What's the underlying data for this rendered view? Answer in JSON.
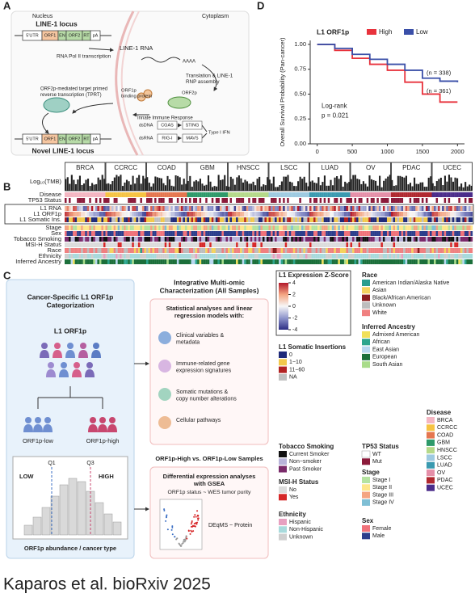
{
  "panel_labels": [
    "A",
    "B",
    "C",
    "D"
  ],
  "panel_a": {
    "nucleus": "Nucleus",
    "cytoplasm": "Cytoplasm",
    "locus": "LINE-1 locus",
    "gene_parts": [
      "5'UTR",
      "ORF1",
      "EN",
      "ORF2",
      "RT",
      "pA"
    ],
    "transcription": "RNA Pol II transcription",
    "rna": "LINE-1 RNA",
    "polya": "AAAA",
    "translation": [
      "Translation & LINE-1",
      "RNP assembly"
    ],
    "tprt": [
      "ORF2p-mediated target primed",
      "reverse transcription (TPRT)"
    ],
    "orf1p": [
      "ORF1p",
      "binding protein"
    ],
    "orf2p": "ORF2p",
    "innate": "Innate Immune Response",
    "dsdna": "dsDNA",
    "cgas": "CGAS",
    "sting": "STING",
    "dsrna": "dsRNA",
    "rigi": "RIG-I",
    "mavs": "MAVS",
    "ifn": "Type I IFN",
    "novel": "Novel LINE-1 locus"
  },
  "chart_data": {
    "type": "line",
    "step": true,
    "title": "L1 ORF1p",
    "y_label": "Overall Survival Probability (Pan-cancer)",
    "x": [
      0,
      250,
      500,
      750,
      1000,
      1250,
      1500,
      1750,
      2000
    ],
    "series": [
      {
        "name": "High",
        "color": "#e8323c",
        "values": [
          1,
          0.94,
          0.86,
          0.8,
          0.74,
          0.62,
          0.5,
          0.42,
          0.42
        ]
      },
      {
        "name": "Low",
        "color": "#3a4fa8",
        "values": [
          1,
          0.96,
          0.9,
          0.85,
          0.8,
          0.74,
          0.66,
          0.63,
          0.62
        ]
      }
    ],
    "xlim": [
      -100,
      2100
    ],
    "ylim": [
      0,
      1.04
    ],
    "xticks": [
      0,
      500,
      1000,
      1500,
      2000
    ],
    "yticks": [
      {
        "value": 0,
        "label": "0.00"
      },
      {
        "value": 0.25,
        "label": "0.25"
      },
      {
        "value": 0.5,
        "label": "0.50"
      },
      {
        "value": 0.75,
        "label": "0.75"
      },
      {
        "value": 1,
        "label": "1.00"
      }
    ],
    "annotations": [
      "(n = 338)",
      "(n = 361)",
      "Log-rank",
      "p = 0.021"
    ]
  },
  "panel_b": {
    "cancers": [
      "BRCA",
      "CCRCC",
      "COAD",
      "GBM",
      "HNSCC",
      "LSCC",
      "LUAD",
      "OV",
      "PDAC",
      "UCEC"
    ],
    "rows": [
      "Log₁₀(TMB)",
      "Disease",
      "TP53 Status",
      "L1 RNA",
      "L1 ORF1p",
      "L1 Somatic Ins.",
      "Stage",
      "Sex",
      "Tobacco Smoking",
      "MSI-H Status",
      "Race",
      "Ethnicity",
      "Inferred Ancestry"
    ]
  },
  "panel_c": {
    "left_title": [
      "Cancer-Specific L1 ORF1p",
      "Categorization"
    ],
    "people_label": "L1 ORF1p",
    "low_group": "ORF1p-low",
    "high_group": "ORF1p-high",
    "q1": "Q1",
    "q3": "Q3",
    "low": "LOW",
    "high": "HIGH",
    "hist_label": "ORF1p abundance / cancer type",
    "top_title": [
      "Integrative Multi-omic",
      "Characterization (All Samples)"
    ],
    "top_subtitle": [
      "Statistical analyses and linear",
      "regression models with:"
    ],
    "top_items": [
      [
        "Clinical variables &",
        "metadata"
      ],
      [
        "Immune-related gene",
        "expression signatures"
      ],
      [
        "Somatic mutations &",
        "copy number alterations"
      ],
      [
        "Cellular pathways"
      ]
    ],
    "bottom_title": "ORF1p-High vs. ORF1p-Low Samples",
    "bottom_subtitle": [
      "Differential expression analyses",
      "with GSEA"
    ],
    "bottom_line": "ORF1p status ~ WES tumor purity",
    "deqms": "DEqMS ~ Protein"
  },
  "legends": [
    {
      "title": "L1 Expression Z-Score",
      "ticks": [
        4,
        2,
        0,
        -2,
        -4
      ],
      "colors": [
        "#b2182b",
        "#f4a582",
        "#f7f7f7",
        "#8f96cc",
        "#2c2d84"
      ]
    },
    {
      "title": "L1 Somatic Insertions",
      "items": [
        {
          "name": "0",
          "color": "#1f2a7a"
        },
        {
          "name": "1−10",
          "color": "#f2c94c"
        },
        {
          "name": "11−60",
          "color": "#b22222"
        },
        {
          "name": "NA",
          "color": "#c0c0c0"
        }
      ]
    },
    {
      "title": "Tobacco Smoking",
      "items": [
        {
          "name": "Current Smoker",
          "color": "#111111"
        },
        {
          "name": "Non−smoker",
          "color": "#b9b4da"
        },
        {
          "name": "Past Smoker",
          "color": "#7a2a6a"
        }
      ]
    },
    {
      "title": "MSI-H Status",
      "items": [
        {
          "name": "No",
          "color": "#dcdcdc"
        },
        {
          "name": "Yes",
          "color": "#d62728"
        }
      ]
    },
    {
      "title": "Ethnicity",
      "items": [
        {
          "name": "Hispanic",
          "color": "#e7a0c0"
        },
        {
          "name": "Non-Hispanic",
          "color": "#a8dadc"
        },
        {
          "name": "Unknown",
          "color": "#cfcfcf"
        }
      ]
    },
    {
      "title": "Race",
      "items": [
        {
          "name": "American Indian/Alaska Native",
          "color": "#2a9d8f"
        },
        {
          "name": "Asian",
          "color": "#f4d35e"
        },
        {
          "name": "Black/African American",
          "color": "#8b1e1e"
        },
        {
          "name": "Unknown",
          "color": "#bdbdbd"
        },
        {
          "name": "White",
          "color": "#f08080"
        }
      ]
    },
    {
      "title": "Inferred Ancestry",
      "items": [
        {
          "name": "Admixed American",
          "color": "#f1e05a"
        },
        {
          "name": "African",
          "color": "#2ca58d"
        },
        {
          "name": "East Asian",
          "color": "#b7d7f0"
        },
        {
          "name": "European",
          "color": "#1b6f3a"
        },
        {
          "name": "South Asian",
          "color": "#a9dc8a"
        }
      ]
    },
    {
      "title": "TP53 Status",
      "items": [
        {
          "name": "WT",
          "color": "#ffffff"
        },
        {
          "name": "Mut",
          "color": "#8b1a3a"
        }
      ]
    },
    {
      "title": "Stage",
      "items": [
        {
          "name": "Stage I",
          "color": "#b5e3a0"
        },
        {
          "name": "Stage II",
          "color": "#fde68a"
        },
        {
          "name": "Stage III",
          "color": "#f4a582"
        },
        {
          "name": "Stage IV",
          "color": "#7fbfd5"
        }
      ]
    },
    {
      "title": "Sex",
      "items": [
        {
          "name": "Female",
          "color": "#f0727a"
        },
        {
          "name": "Male",
          "color": "#2c3e8c"
        }
      ]
    },
    {
      "title": "Disease",
      "items": [
        {
          "name": "BRCA",
          "color": "#f4b6c2"
        },
        {
          "name": "CCRCC",
          "color": "#f6c343"
        },
        {
          "name": "COAD",
          "color": "#e5764f"
        },
        {
          "name": "GBM",
          "color": "#2e9a6a"
        },
        {
          "name": "HNSCC",
          "color": "#b5d98a"
        },
        {
          "name": "LSCC",
          "color": "#9ecae1"
        },
        {
          "name": "LUAD",
          "color": "#3a9ab0"
        },
        {
          "name": "OV",
          "color": "#e58fa8"
        },
        {
          "name": "PDAC",
          "color": "#b0282f"
        },
        {
          "name": "UCEC",
          "color": "#4a2c8a"
        }
      ]
    }
  ],
  "footer": "Kaparos et al. bioRxiv 2025"
}
